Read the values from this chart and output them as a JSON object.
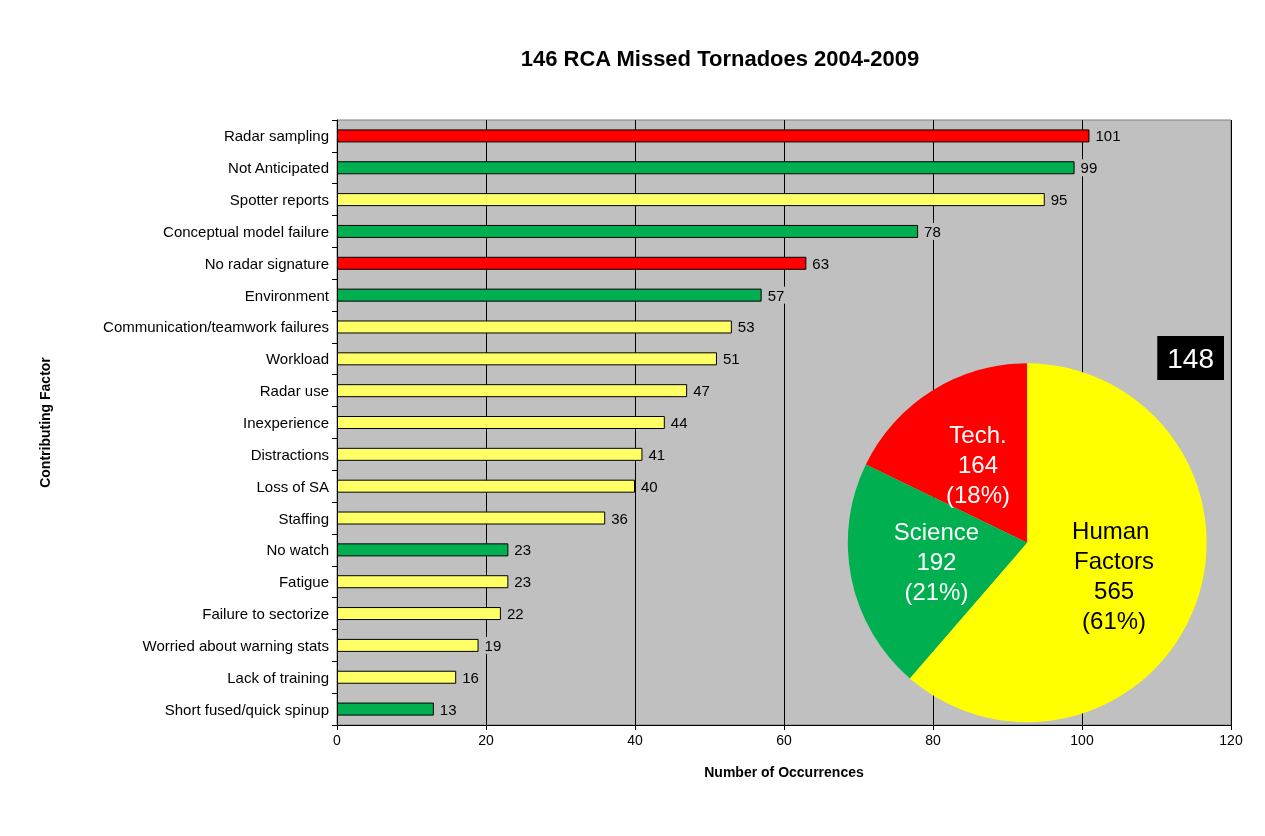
{
  "chart_data": [
    {
      "type": "bar",
      "orientation": "horizontal",
      "title": "146 RCA Missed Tornadoes 2004-2009",
      "xlabel": "Number of Occurrences",
      "ylabel": "Contributing Factor",
      "categories": [
        "Radar sampling",
        "Not Anticipated",
        "Spotter reports",
        "Conceptual model failure",
        "No radar signature",
        "Environment",
        "Communication/teamwork failures",
        "Workload",
        "Radar use",
        "Inexperience",
        "Distractions",
        "Loss of SA",
        "Staffing",
        "No watch",
        "Fatigue",
        "Failure to sectorize",
        "Worried about warning stats",
        "Lack of training",
        "Short fused/quick spinup"
      ],
      "values": [
        101,
        99,
        95,
        78,
        63,
        57,
        53,
        51,
        47,
        44,
        41,
        40,
        36,
        23,
        23,
        22,
        19,
        16,
        13
      ],
      "colors": [
        "#ff0000",
        "#00b050",
        "#ffff66",
        "#00b050",
        "#ff0000",
        "#00b050",
        "#ffff66",
        "#ffff66",
        "#ffff66",
        "#ffff66",
        "#ffff66",
        "#ffff66",
        "#ffff66",
        "#00b050",
        "#ffff66",
        "#ffff66",
        "#ffff66",
        "#ffff66",
        "#00b050"
      ],
      "xlim": [
        0,
        120
      ],
      "xticks": [
        0,
        20,
        40,
        60,
        80,
        100,
        120
      ],
      "grid": "x",
      "data_labels": true,
      "legend": false
    },
    {
      "type": "pie",
      "categories": [
        "Tech.",
        "Science",
        "Human Factors"
      ],
      "values": [
        164,
        192,
        565
      ],
      "colors": [
        "#ff0000",
        "#00b050",
        "#ffff00"
      ],
      "value_labels": [
        "164 (18%)",
        "192 (21%)",
        "565 (61%)"
      ],
      "annotations": [
        "148"
      ],
      "legend": false
    }
  ]
}
